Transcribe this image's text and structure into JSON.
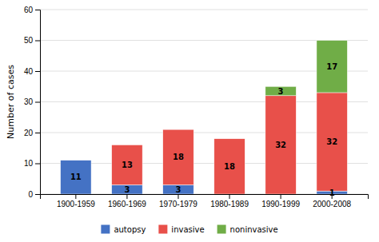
{
  "chart_data": {
    "type": "bar",
    "stacked": true,
    "data_labels": true,
    "grid": true,
    "legend": "bottom",
    "y_label": "Number of cases",
    "categories": [
      "1900-1959",
      "1960-1969",
      "1970-1979",
      "1980-1989",
      "1990-1999",
      "2000-2008"
    ],
    "series": [
      {
        "name": "autopsy",
        "color": "#4472C4",
        "values": [
          11,
          3,
          3,
          0,
          0,
          1
        ]
      },
      {
        "name": "invasive",
        "color": "#E8504A",
        "values": [
          0,
          13,
          18,
          18,
          32,
          32
        ]
      },
      {
        "name": "noninvasive",
        "color": "#70AD47",
        "values": [
          0,
          0,
          0,
          0,
          3,
          17
        ]
      }
    ],
    "ylim": [
      0,
      60
    ],
    "yticks": [
      0,
      10,
      20,
      30,
      40,
      50,
      60
    ]
  }
}
